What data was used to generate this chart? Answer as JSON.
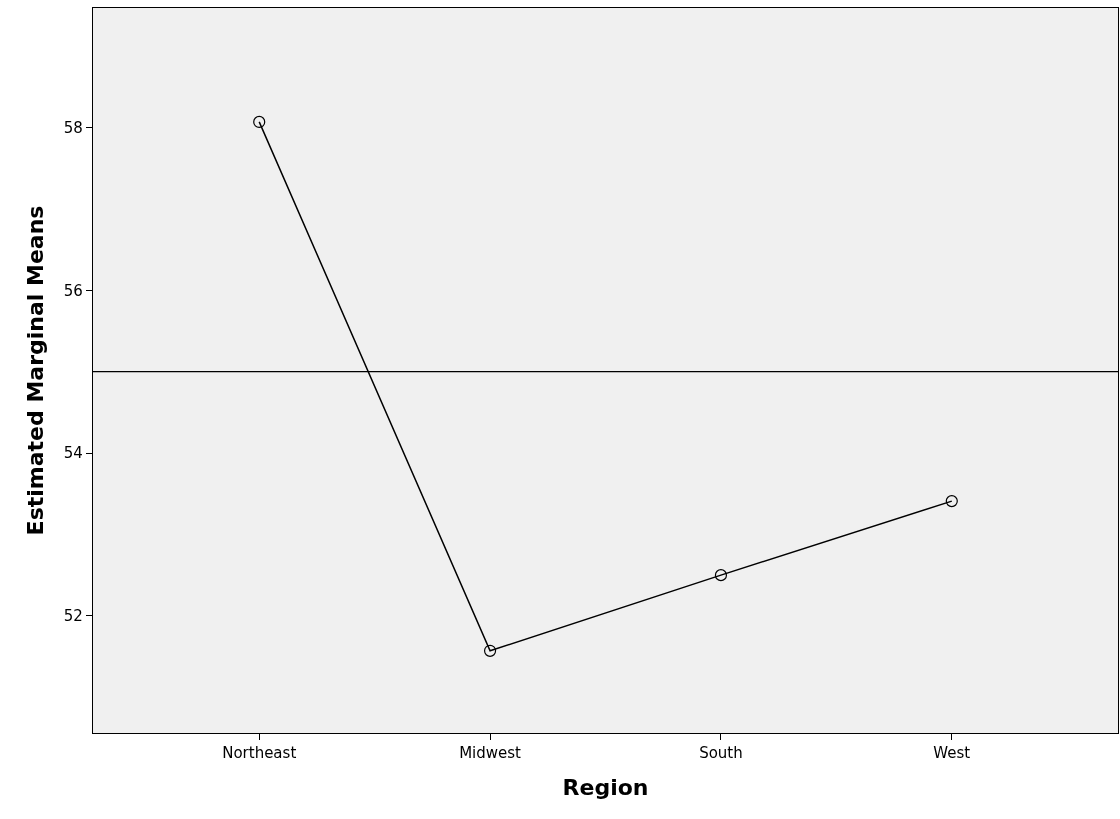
{
  "chart_data": {
    "type": "line",
    "xlabel": "Region",
    "ylabel": "Estimated Marginal Means",
    "categories": [
      "Northeast",
      "Midwest",
      "South",
      "West"
    ],
    "series": [
      {
        "color": "#000000",
        "values": [
          58.07,
          51.57,
          52.5,
          53.41
        ]
      }
    ],
    "ylim": [
      50.56,
      59.47
    ],
    "yticks": [
      52,
      54,
      56,
      58
    ],
    "marker": "circle",
    "line_style": "solid",
    "grid": false,
    "legend": false,
    "ref_lines": [
      {
        "axis": "y",
        "value": 55.0,
        "color": "#000000"
      }
    ]
  }
}
